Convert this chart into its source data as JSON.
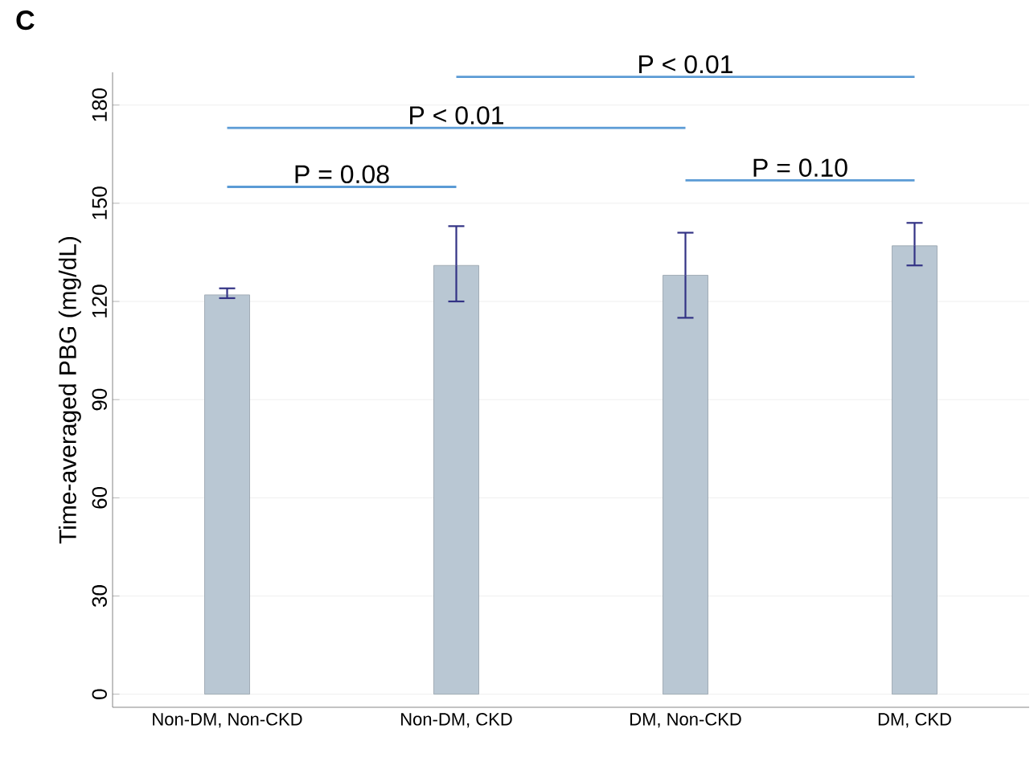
{
  "chart_data": {
    "type": "bar",
    "title": "C",
    "ylabel": "Time-averaged PBG (mg/dL)",
    "categories": [
      "Non-DM, Non-CKD",
      "Non-DM, CKD",
      "DM, Non-CKD",
      "DM, CKD"
    ],
    "values": [
      122,
      131,
      128,
      137
    ],
    "errors": [
      [
        121,
        124
      ],
      [
        120,
        143
      ],
      [
        115,
        141
      ],
      [
        131,
        144
      ]
    ],
    "color": "#b9c7d3",
    "ylim": [
      -4,
      190
    ],
    "yticks": [
      0,
      30,
      60,
      90,
      120,
      150,
      180
    ],
    "grid": "y",
    "annotations": [
      "P = 0.08",
      "P < 0.01",
      "P < 0.01",
      "P = 0.10"
    ]
  }
}
